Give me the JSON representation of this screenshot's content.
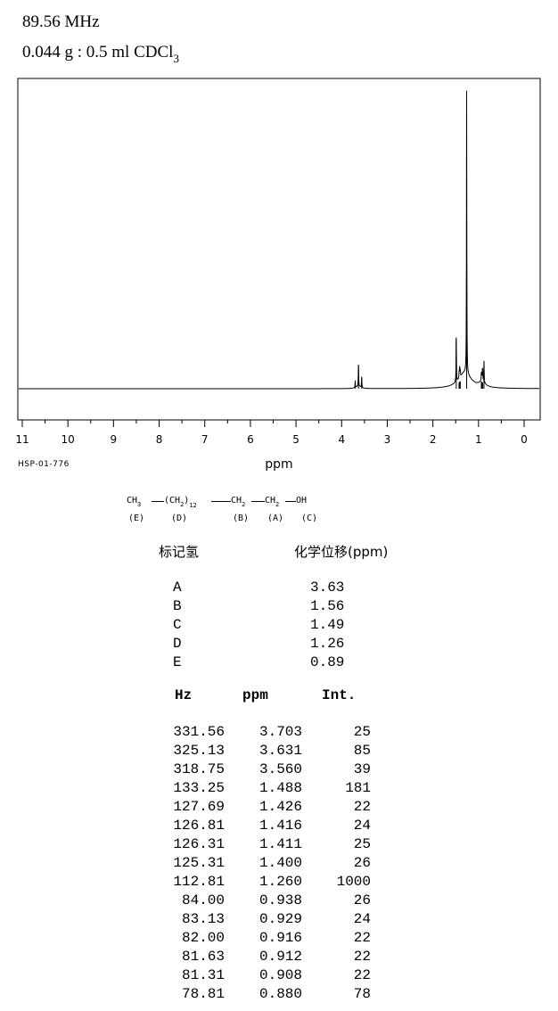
{
  "header": {
    "frequency": "89.56 MHz",
    "sample_prefix": "0.044 g : 0.5 ml CDCl",
    "sample_subscript": "3"
  },
  "spectrum_code": "HSP-01-776",
  "structure": {
    "ch3": "CH",
    "ch3_sub": "3",
    "ch2_chain": "(CH",
    "ch2_chain_sub": "2",
    "ch2_chain_close": ")",
    "repeat": "12",
    "ch2_b": "CH",
    "ch2_b_sub": "2",
    "ch2_a": "CH",
    "ch2_a_sub": "2",
    "oh": "OH",
    "labels": [
      "(E)",
      "(D)",
      "(B)",
      "(A)",
      "(C)"
    ]
  },
  "assignment": {
    "col_label": "标记氢",
    "col_shift": "化学位移(ppm)",
    "rows": [
      {
        "label": "A",
        "shift": "3.63"
      },
      {
        "label": "B",
        "shift": "1.56"
      },
      {
        "label": "C",
        "shift": "1.49"
      },
      {
        "label": "D",
        "shift": "1.26"
      },
      {
        "label": "E",
        "shift": "0.89"
      }
    ]
  },
  "peaks": {
    "headers": {
      "hz": "Hz",
      "ppm": "ppm",
      "int": "Int."
    },
    "rows": [
      {
        "hz": "331.56",
        "ppm": "3.703",
        "int": "25"
      },
      {
        "hz": "325.13",
        "ppm": "3.631",
        "int": "85"
      },
      {
        "hz": "318.75",
        "ppm": "3.560",
        "int": "39"
      },
      {
        "hz": "133.25",
        "ppm": "1.488",
        "int": "181"
      },
      {
        "hz": "127.69",
        "ppm": "1.426",
        "int": "22"
      },
      {
        "hz": "126.81",
        "ppm": "1.416",
        "int": "24"
      },
      {
        "hz": "126.31",
        "ppm": "1.411",
        "int": "25"
      },
      {
        "hz": "125.31",
        "ppm": "1.400",
        "int": "26"
      },
      {
        "hz": "112.81",
        "ppm": "1.260",
        "int": "1000"
      },
      {
        "hz": "84.00",
        "ppm": "0.938",
        "int": "26"
      },
      {
        "hz": "83.13",
        "ppm": "0.929",
        "int": "24"
      },
      {
        "hz": "82.00",
        "ppm": "0.916",
        "int": "22"
      },
      {
        "hz": "81.63",
        "ppm": "0.912",
        "int": "22"
      },
      {
        "hz": "81.31",
        "ppm": "0.908",
        "int": "22"
      },
      {
        "hz": "78.81",
        "ppm": "0.880",
        "int": "78"
      }
    ]
  },
  "chart_data": {
    "type": "line",
    "xlabel": "ppm",
    "x_reversed": true,
    "xlim": [
      11,
      0
    ],
    "ylim": [
      0,
      1000
    ],
    "grid": false,
    "tick_labels": [
      "11",
      "10",
      "9",
      "8",
      "7",
      "6",
      "5",
      "4",
      "3",
      "2",
      "1",
      "0"
    ],
    "peaks": [
      {
        "ppm": 3.703,
        "intensity": 25
      },
      {
        "ppm": 3.631,
        "intensity": 85
      },
      {
        "ppm": 3.56,
        "intensity": 39
      },
      {
        "ppm": 1.488,
        "intensity": 181
      },
      {
        "ppm": 1.426,
        "intensity": 22
      },
      {
        "ppm": 1.416,
        "intensity": 24
      },
      {
        "ppm": 1.411,
        "intensity": 25
      },
      {
        "ppm": 1.4,
        "intensity": 26
      },
      {
        "ppm": 1.26,
        "intensity": 1000
      },
      {
        "ppm": 0.938,
        "intensity": 26
      },
      {
        "ppm": 0.929,
        "intensity": 24
      },
      {
        "ppm": 0.916,
        "intensity": 22
      },
      {
        "ppm": 0.912,
        "intensity": 22
      },
      {
        "ppm": 0.908,
        "intensity": 22
      },
      {
        "ppm": 0.88,
        "intensity": 78
      }
    ]
  }
}
